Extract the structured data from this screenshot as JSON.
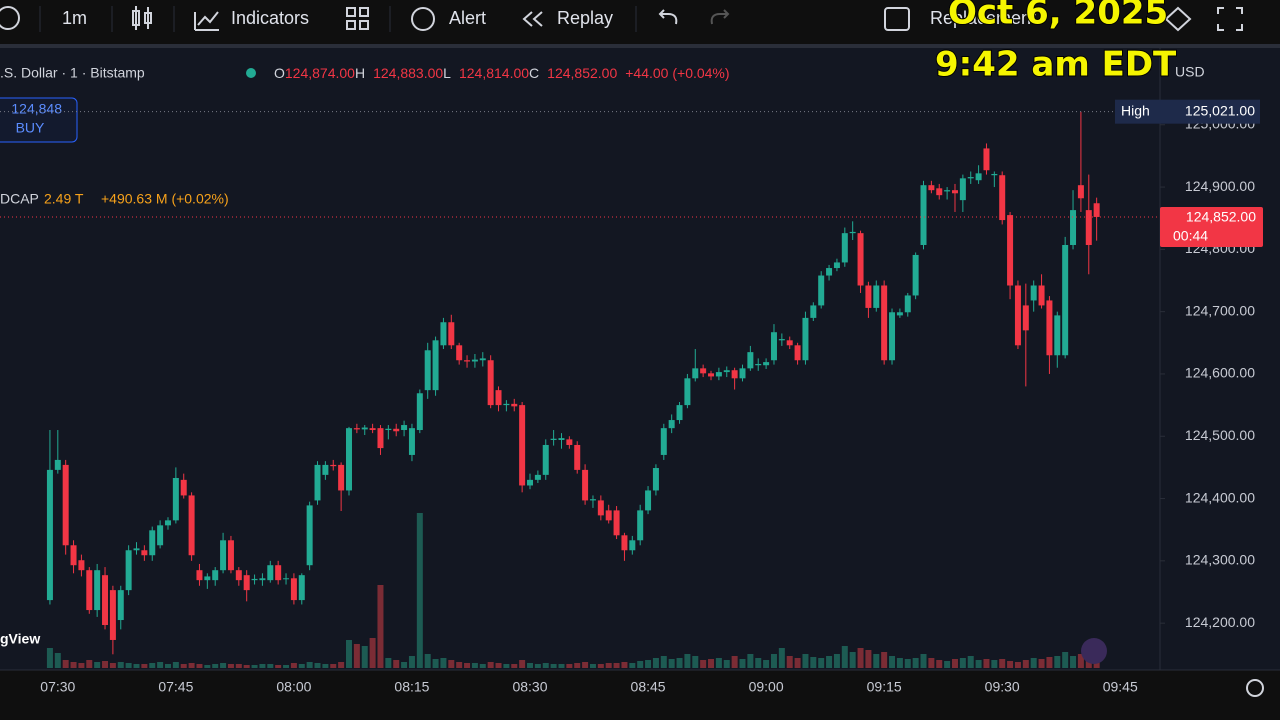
{
  "toolbar": {
    "interval": "1m",
    "indicators": "Indicators",
    "alert": "Alert",
    "replay": "Replay",
    "hidden": "Replacement"
  },
  "overlay": {
    "date": "Oct 6, 2025",
    "time": "9:42 am EDT"
  },
  "legend": {
    "ohlc": [
      {
        "key": "O",
        "value": "124,874.00"
      },
      {
        "key": "H",
        "value": "124,883.00"
      },
      {
        "key": "L",
        "value": "124,814.00"
      },
      {
        "key": "C",
        "value": "124,852.00"
      }
    ],
    "change": "+44.00 (+0.04%)"
  },
  "buy": {
    "price": "124,848",
    "label": "BUY"
  },
  "indicator": {
    "name": "DCAP",
    "value": "2.49 T",
    "change": "+490.63 M (+0.02%)"
  },
  "currency": "USD",
  "watermark": "gView",
  "chart_data": {
    "type": "candlestick",
    "title": ".S. Dollar · 1 · Bitstamp",
    "up_color": "#22ab94",
    "down_color": "#f23645",
    "volume_up_color": "#1d5b53",
    "volume_down_color": "#7b2c35",
    "grid": false,
    "ylim": [
      124128,
      125120
    ],
    "yticks": [
      {
        "value": 124200,
        "label": "124,200.00"
      },
      {
        "value": 124300,
        "label": "124,300.00"
      },
      {
        "value": 124400,
        "label": "124,400.00"
      },
      {
        "value": 124500,
        "label": "124,500.00"
      },
      {
        "value": 124600,
        "label": "124,600.00"
      },
      {
        "value": 124700,
        "label": "124,700.00"
      },
      {
        "value": 124800,
        "label": "124,800.00"
      },
      {
        "value": 124900,
        "label": "124,900.00"
      },
      {
        "value": 125000,
        "label": "125,000.00"
      }
    ],
    "high_marker": {
      "name": "High",
      "value": 125021,
      "label": "125,021.00"
    },
    "last_marker": {
      "value": 124852,
      "label": "124,852.00",
      "countdown": "00:44"
    },
    "vlim": [
      0,
      160
    ],
    "categories": [
      null,
      "07:30",
      null,
      null,
      null,
      null,
      null,
      null,
      null,
      null,
      null,
      null,
      null,
      null,
      null,
      null,
      "07:45",
      null,
      null,
      null,
      null,
      null,
      null,
      null,
      null,
      null,
      null,
      null,
      null,
      null,
      null,
      "08:00",
      null,
      null,
      null,
      null,
      null,
      null,
      null,
      null,
      null,
      null,
      null,
      null,
      null,
      null,
      "08:15",
      null,
      null,
      null,
      null,
      null,
      null,
      null,
      null,
      null,
      null,
      null,
      null,
      null,
      null,
      "08:30",
      null,
      null,
      null,
      null,
      null,
      null,
      null,
      null,
      null,
      null,
      null,
      null,
      null,
      null,
      "08:45",
      null,
      null,
      null,
      null,
      null,
      null,
      null,
      null,
      null,
      null,
      null,
      null,
      null,
      null,
      "09:00",
      null,
      null,
      null,
      null,
      null,
      null,
      null,
      null,
      null,
      null,
      null,
      null,
      null,
      null,
      "09:15",
      null,
      null,
      null,
      null,
      null,
      null,
      null,
      null,
      null,
      null,
      null,
      null,
      null,
      null,
      "09:30",
      null,
      null,
      null,
      null,
      null,
      null,
      null,
      null,
      null,
      null,
      null,
      null,
      null,
      null,
      "09:45"
    ],
    "open": [
      124237,
      124446,
      124454,
      124325,
      124301,
      124285,
      124221,
      124277,
      124253,
      124205,
      124253,
      124317,
      124317,
      124309,
      124325,
      124357,
      124365,
      124430,
      124405,
      124285,
      124269,
      124269,
      124285,
      124333,
      124285,
      124277,
      124269,
      124269,
      124269,
      124293,
      124271,
      124272,
      124237,
      124293,
      124397,
      124438,
      124454,
      124454,
      124413,
      124513,
      124511,
      124513,
      124513,
      124510,
      124512,
      124510,
      124470,
      124510,
      124574,
      124574,
      124646,
      124683,
      124646,
      124622,
      124620,
      124622,
      124622,
      124574,
      124550,
      124552,
      124550,
      124421,
      124430,
      124438,
      124494,
      124494,
      124495,
      124486,
      124446,
      124397,
      124397,
      124381,
      124381,
      124341,
      124317,
      124333,
      124381,
      124413,
      124470,
      124513,
      124526,
      124550,
      124593,
      124609,
      124601,
      124596,
      124603,
      124606,
      124593,
      124609,
      124614,
      124614,
      124622,
      124654,
      124654,
      124646,
      124622,
      124690,
      124710,
      124758,
      124770,
      124779,
      124826,
      124826,
      124742,
      124706,
      124742,
      124622,
      124694,
      124699,
      124726,
      124807,
      124903,
      124898,
      124893,
      124895,
      124879,
      124914,
      124911,
      124962,
      124919,
      124919,
      124855,
      124742,
      124710,
      124718,
      124742,
      124718,
      124630,
      124630,
      124807,
      124903,
      124863,
      124874,
      null,
      null,
      null
    ],
    "high": [
      124510,
      124510,
      124462,
      124333,
      124310,
      124290,
      124295,
      124290,
      124260,
      124260,
      124325,
      124330,
      124325,
      124355,
      124365,
      124370,
      124450,
      124440,
      124410,
      124295,
      124280,
      124290,
      124345,
      124340,
      124290,
      124285,
      124278,
      124280,
      124300,
      124300,
      124280,
      124280,
      124280,
      124395,
      124460,
      124460,
      124462,
      124458,
      124515,
      124520,
      124518,
      124520,
      124518,
      124518,
      124520,
      124525,
      124520,
      124575,
      124650,
      124660,
      124690,
      124695,
      124650,
      124630,
      124632,
      124635,
      124630,
      124580,
      124558,
      124560,
      124555,
      124440,
      124445,
      124495,
      124510,
      124505,
      124500,
      124492,
      124455,
      124405,
      124405,
      124390,
      124388,
      124345,
      124340,
      124390,
      124420,
      124455,
      124520,
      124535,
      124555,
      124600,
      124640,
      124615,
      124605,
      124610,
      124612,
      124610,
      124615,
      124645,
      124625,
      124625,
      124680,
      124665,
      124660,
      124650,
      124700,
      124715,
      124765,
      124775,
      124785,
      124835,
      124845,
      124830,
      124748,
      124750,
      124750,
      124705,
      124705,
      124730,
      124795,
      124910,
      124910,
      124905,
      124900,
      124905,
      124920,
      124925,
      124935,
      124970,
      124925,
      124925,
      124860,
      124750,
      124745,
      124750,
      124760,
      124725,
      124700,
      124820,
      124895,
      125021,
      124920,
      124883,
      null,
      null,
      null
    ],
    "low": [
      124230,
      124440,
      124310,
      124280,
      124275,
      124215,
      124210,
      124190,
      124150,
      124190,
      124245,
      124310,
      124300,
      124300,
      124320,
      124350,
      124360,
      124400,
      124300,
      124260,
      124255,
      124260,
      124280,
      124280,
      124260,
      124235,
      124262,
      124260,
      124265,
      124262,
      124262,
      124230,
      124230,
      124285,
      124390,
      124430,
      124445,
      124380,
      124405,
      124505,
      124502,
      124505,
      124470,
      124495,
      124500,
      124500,
      124460,
      124505,
      124560,
      124565,
      124640,
      124640,
      124615,
      124610,
      124610,
      124612,
      124545,
      124540,
      124540,
      124540,
      124410,
      124415,
      124425,
      124430,
      124485,
      124480,
      124480,
      124440,
      124390,
      124385,
      124365,
      124360,
      124335,
      124300,
      124310,
      124325,
      124375,
      124405,
      124462,
      124505,
      124520,
      124545,
      124588,
      124595,
      124590,
      124590,
      124595,
      124575,
      124588,
      124605,
      124605,
      124608,
      124615,
      124645,
      124640,
      124615,
      124615,
      124685,
      124705,
      124750,
      124765,
      124772,
      124815,
      124730,
      124690,
      124700,
      124615,
      124615,
      124690,
      124692,
      124720,
      124800,
      124890,
      124880,
      124880,
      124860,
      124860,
      124905,
      124905,
      124920,
      124900,
      124840,
      124720,
      124640,
      124580,
      124700,
      124705,
      124600,
      124610,
      124625,
      124800,
      124860,
      124760,
      124814,
      null,
      null,
      null
    ],
    "close": [
      124446,
      124462,
      124325,
      124293,
      124285,
      124221,
      124285,
      124197,
      124173,
      124253,
      124317,
      124320,
      124309,
      124349,
      124357,
      124365,
      124433,
      124405,
      124309,
      124269,
      124275,
      124285,
      124333,
      124285,
      124269,
      124253,
      124271,
      124272,
      124293,
      124269,
      124272,
      124237,
      124277,
      124389,
      124454,
      124454,
      124452,
      124413,
      124513,
      124511,
      124514,
      124510,
      124481,
      124512,
      124508,
      124518,
      124513,
      124569,
      124638,
      124654,
      124683,
      124646,
      124622,
      124620,
      124623,
      124625,
      124550,
      124550,
      124552,
      124548,
      124421,
      124430,
      124438,
      124486,
      124496,
      124497,
      124486,
      124446,
      124397,
      124399,
      124373,
      124365,
      124341,
      124317,
      124333,
      124381,
      124413,
      124449,
      124513,
      124526,
      124550,
      124593,
      124609,
      124601,
      124596,
      124603,
      124606,
      124593,
      124609,
      124635,
      124616,
      124619,
      124667,
      124656,
      124646,
      124622,
      124690,
      124710,
      124758,
      124770,
      124779,
      124826,
      124828,
      124742,
      124706,
      124742,
      124622,
      124699,
      124699,
      124726,
      124791,
      124903,
      124895,
      124887,
      124895,
      124890,
      124914,
      124916,
      124922,
      124927,
      124921,
      124847,
      124742,
      124646,
      124670,
      124742,
      124710,
      124630,
      124694,
      124807,
      124863,
      124882,
      124807,
      124852,
      null,
      null,
      null
    ],
    "volume": [
      20,
      15,
      8,
      6,
      5,
      8,
      6,
      7,
      5,
      6,
      5,
      4,
      4,
      5,
      6,
      4,
      6,
      4,
      5,
      4,
      3,
      4,
      5,
      4,
      4,
      3,
      3,
      4,
      4,
      3,
      3,
      5,
      4,
      6,
      5,
      4,
      4,
      6,
      28,
      24,
      22,
      30,
      83,
      10,
      8,
      6,
      12,
      155,
      14,
      9,
      10,
      8,
      6,
      5,
      5,
      4,
      6,
      5,
      4,
      4,
      8,
      5,
      4,
      5,
      4,
      4,
      4,
      5,
      6,
      4,
      4,
      5,
      5,
      6,
      5,
      7,
      8,
      10,
      12,
      9,
      10,
      14,
      12,
      8,
      9,
      10,
      8,
      12,
      9,
      14,
      10,
      8,
      14,
      20,
      12,
      10,
      14,
      11,
      10,
      12,
      14,
      22,
      16,
      20,
      18,
      14,
      16,
      12,
      10,
      9,
      10,
      14,
      10,
      8,
      7,
      9,
      10,
      12,
      8,
      9,
      8,
      9,
      7,
      6,
      8,
      10,
      9,
      11,
      12,
      16,
      12,
      14,
      10,
      8,
      null,
      null,
      null
    ]
  }
}
